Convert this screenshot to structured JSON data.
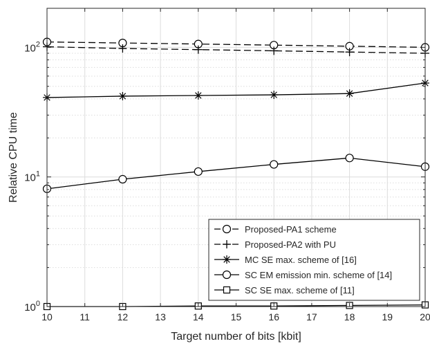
{
  "chart_data": {
    "type": "line",
    "title": "",
    "xlabel": "Target number of bits [kbit]",
    "ylabel": "Relative CPU time",
    "xlim": [
      10,
      20
    ],
    "ylim": [
      1,
      200
    ],
    "yscale": "log",
    "grid": true,
    "legend_position": "bottom-right",
    "x_ticks": [
      "10",
      "11",
      "12",
      "13",
      "14",
      "15",
      "16",
      "17",
      "18",
      "19",
      "20"
    ],
    "y_ticks": [
      {
        "base": "10",
        "exp": "0",
        "value": 1
      },
      {
        "base": "10",
        "exp": "1",
        "value": 10
      },
      {
        "base": "10",
        "exp": "2",
        "value": 100
      }
    ],
    "x": [
      10,
      12,
      14,
      16,
      18,
      20
    ],
    "series": [
      {
        "name": "Proposed-PA1 scheme",
        "marker": "circle",
        "dash": "dashed",
        "values": [
          110,
          108,
          106,
          104,
          102,
          100
        ]
      },
      {
        "name": "Proposed-PA2 with PU",
        "marker": "plus",
        "dash": "dashed",
        "values": [
          101,
          98,
          96,
          94,
          92,
          90
        ]
      },
      {
        "name": "MC SE max. scheme of [16]",
        "marker": "asterisk",
        "dash": "solid",
        "values": [
          41,
          42,
          42.5,
          43,
          44,
          53
        ]
      },
      {
        "name": "SC EM emission min. scheme of [14]",
        "marker": "circle",
        "dash": "solid",
        "values": [
          8.1,
          9.6,
          11,
          12.5,
          14,
          12
        ]
      },
      {
        "name": "SC SE max. scheme of [11]",
        "marker": "square",
        "dash": "solid",
        "values": [
          1.0,
          1.0,
          1.01,
          1.01,
          1.02,
          1.03
        ]
      }
    ],
    "colors": {
      "line": "#000000",
      "grid": "#dcdcdc",
      "axis": "#262626"
    }
  }
}
